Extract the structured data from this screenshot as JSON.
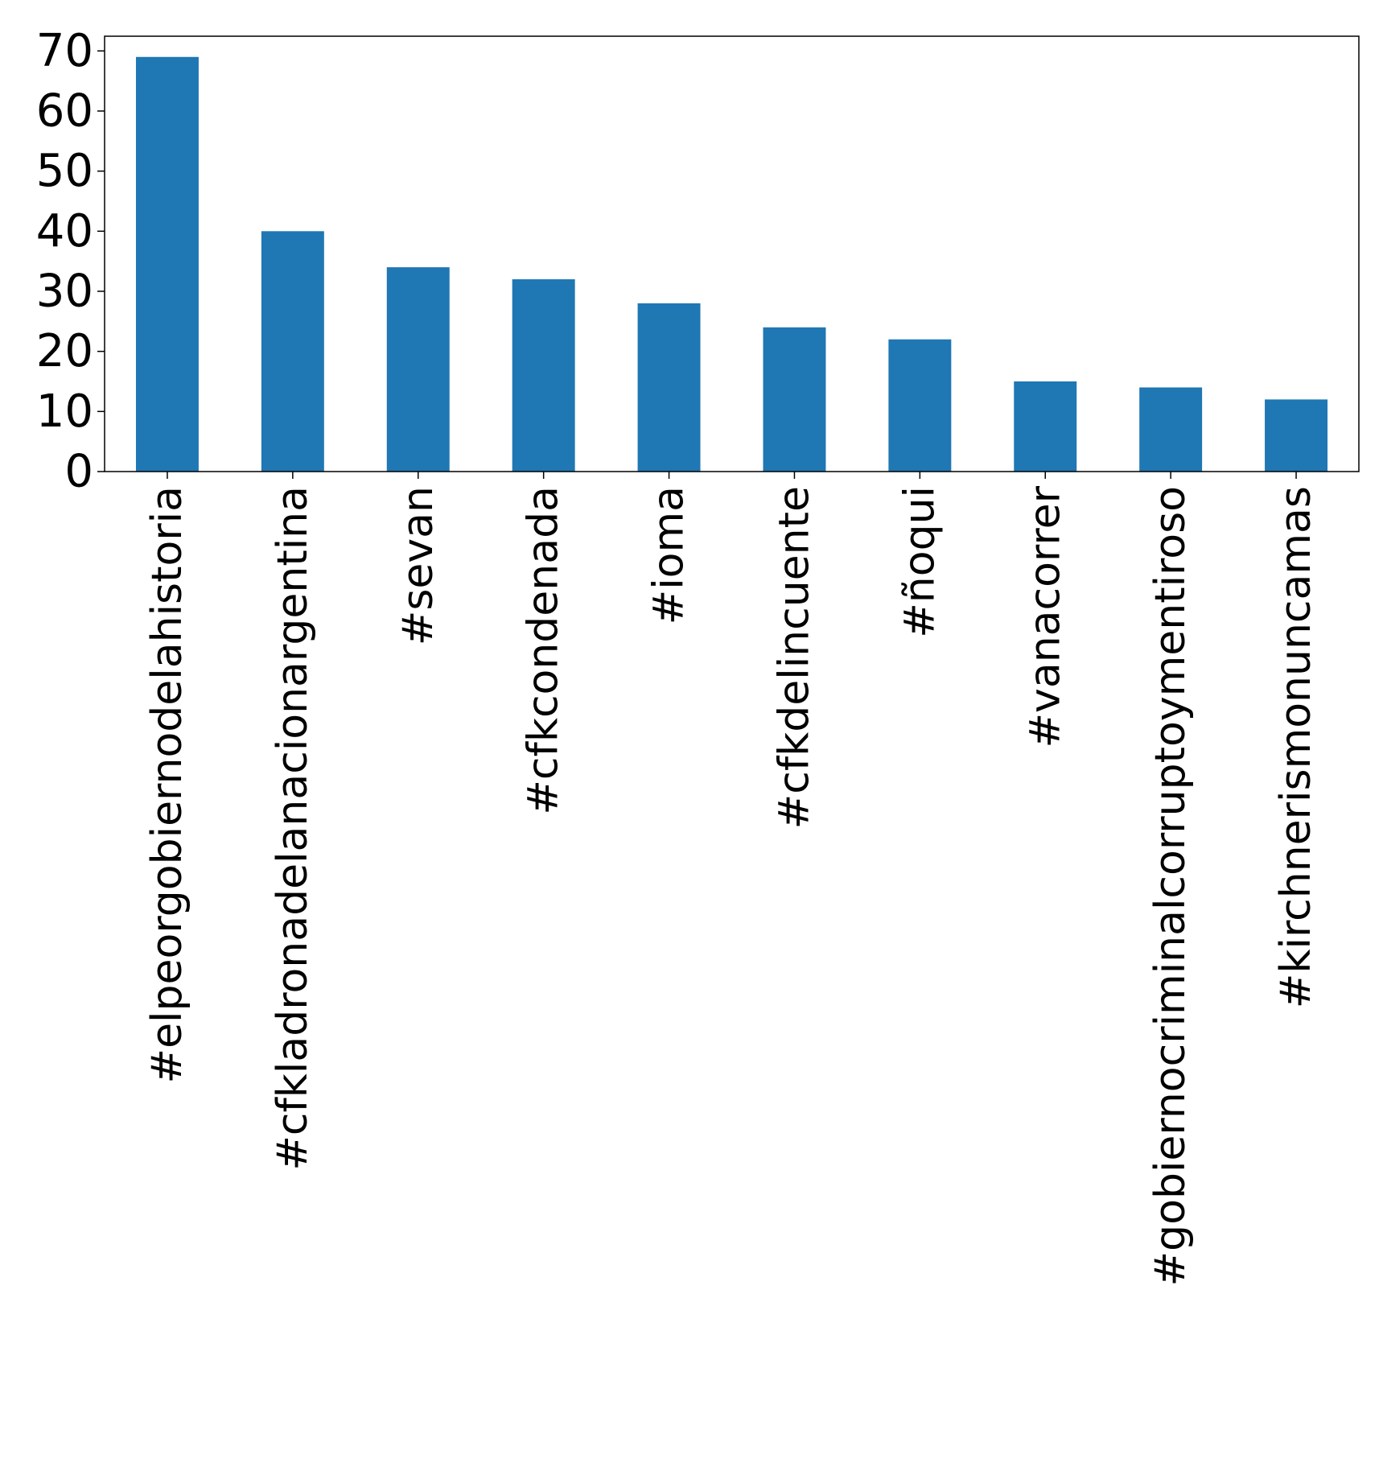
{
  "chart_data": {
    "type": "bar",
    "title": "",
    "xlabel": "",
    "ylabel": "",
    "categories": [
      "#elpeorgobiernodelahistoria",
      "#cfkladronadelanacionargentina",
      "#sevan",
      "#cfkcondenada",
      "#ioma",
      "#cfkdelincuente",
      "#ñoqui",
      "#vanacorrer",
      "#gobiernocriminalcorruptoymentiroso",
      "#kirchnerismonuncamas"
    ],
    "values": [
      69,
      40,
      34,
      32,
      28,
      24,
      22,
      15,
      14,
      12
    ],
    "ylim": [
      0,
      72.45
    ],
    "yticks": [
      0,
      10,
      20,
      30,
      40,
      50,
      60,
      70
    ],
    "bar_color": "#1f77b4",
    "grid": false,
    "legend": "none"
  }
}
